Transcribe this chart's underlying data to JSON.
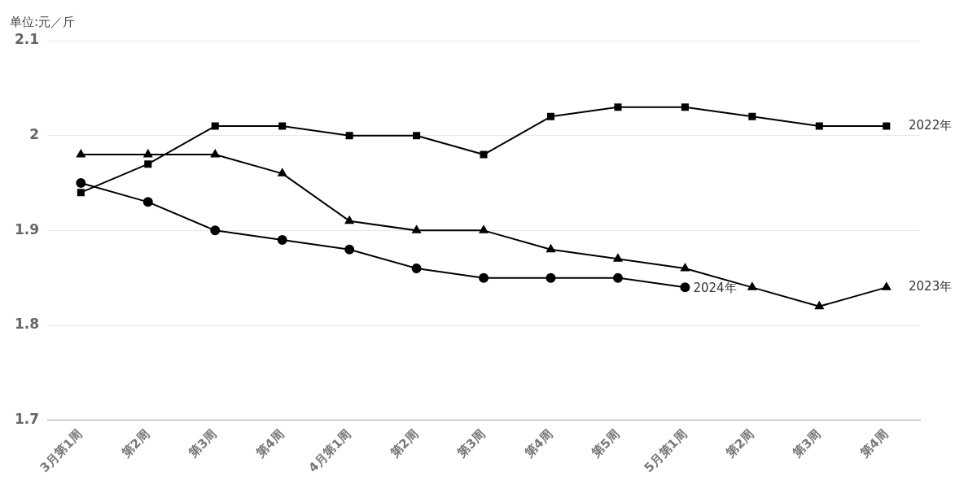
{
  "chart_data": {
    "type": "line",
    "ylabel": "单位:元／斤",
    "categories": [
      "3月第1周",
      "第2周",
      "第3周",
      "第4周",
      "4月第1周",
      "第2周",
      "第3周",
      "第4周",
      "第5周",
      "5月第1周",
      "第2周",
      "第3周",
      "第4周"
    ],
    "series": [
      {
        "name": "2022年",
        "color": "#000000",
        "marker": "square",
        "values": [
          1.94,
          1.97,
          2.01,
          2.01,
          2.0,
          2.0,
          1.98,
          2.02,
          2.03,
          2.03,
          2.02,
          2.01,
          2.01
        ]
      },
      {
        "name": "2023年",
        "color": "#000000",
        "marker": "triangle",
        "values": [
          1.98,
          1.98,
          1.98,
          1.96,
          1.91,
          1.9,
          1.9,
          1.88,
          1.87,
          1.86,
          1.84,
          1.82,
          1.84
        ]
      },
      {
        "name": "2024年",
        "color": "#000000",
        "marker": "circle",
        "values": [
          1.95,
          1.93,
          1.9,
          1.89,
          1.88,
          1.86,
          1.85,
          1.85,
          1.85,
          1.84,
          null,
          null,
          null
        ]
      }
    ],
    "ylim": [
      1.7,
      2.1
    ],
    "yticks": [
      1.7,
      1.8,
      1.9,
      2,
      2.1
    ],
    "grid": "y",
    "legend": false
  }
}
